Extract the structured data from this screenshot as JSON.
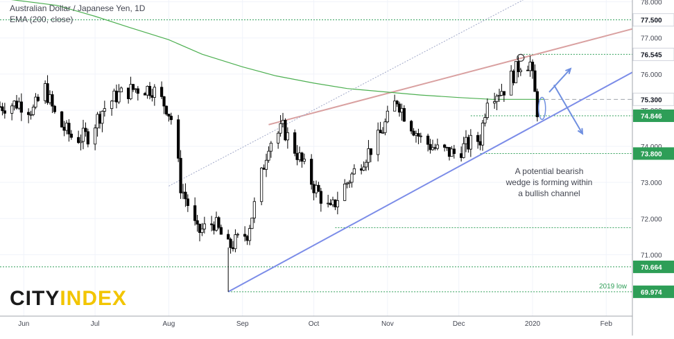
{
  "header": {
    "title": "Australian Dollar / Japanese Yen, 1D",
    "indicator": "EMA (200, close)"
  },
  "logo": {
    "part1": "CITY",
    "part2": "INDEX"
  },
  "annotation": {
    "lines": [
      "A potential bearish",
      "wedge is forming within",
      "a bullish channel"
    ]
  },
  "low_label": "2019 low",
  "colors": {
    "up_candle": "#ffffff",
    "down_candle": "#000000",
    "ema": "#4caf50",
    "upper_trendline": "#d9a0a0",
    "lower_trendline": "#7b8ce8",
    "level_line": "#2e9e57",
    "label_box": "#2e9e57",
    "arrows": "#6f8fe0",
    "logo_city": "#1a1a1a",
    "logo_index": "#f2c500"
  },
  "chart_data": {
    "type": "candlestick",
    "title": "Australian Dollar / Japanese Yen, 1D",
    "x_ticks": [
      "Jun",
      "Jul",
      "Aug",
      "Sep",
      "Oct",
      "Nov",
      "Dec",
      "2020",
      "Feb"
    ],
    "x_range": [
      "2019-05-22",
      "2020-02-12"
    ],
    "y_ticks": [
      "78.000",
      "77.000",
      "76.000",
      "75.000",
      "74.000",
      "73.000",
      "72.000",
      "71.000"
    ],
    "ylim": [
      69.3,
      78.05
    ],
    "price_levels": [
      {
        "value": 77.5,
        "label": "77.500",
        "style": "dotted",
        "highlight": true
      },
      {
        "value": 76.545,
        "label": "76.545",
        "style": "dotted",
        "highlight": true
      },
      {
        "value": 75.3,
        "label": "75.300",
        "style": "dashed",
        "highlight": true
      },
      {
        "value": 74.846,
        "label": "74.846",
        "style": "dotted",
        "highlight": true
      },
      {
        "value": 73.8,
        "label": "73.800",
        "style": "dotted",
        "highlight": true
      },
      {
        "value": 71.75,
        "label": "",
        "style": "dotted",
        "highlight": false
      },
      {
        "value": 70.664,
        "label": "70.664",
        "style": "dotted",
        "highlight": true
      },
      {
        "value": 69.974,
        "label": "69.974",
        "style": "dotted",
        "highlight": true
      }
    ],
    "series": [
      {
        "name": "EMA (200, close)",
        "type": "line",
        "points": [
          [
            "2019-05-22",
            78.1
          ],
          [
            "2019-06-15",
            77.9
          ],
          [
            "2019-07-01",
            77.6
          ],
          [
            "2019-07-15",
            77.3
          ],
          [
            "2019-08-01",
            76.95
          ],
          [
            "2019-08-15",
            76.55
          ],
          [
            "2019-09-01",
            76.2
          ],
          [
            "2019-09-15",
            75.95
          ],
          [
            "2019-10-01",
            75.75
          ],
          [
            "2019-10-15",
            75.6
          ],
          [
            "2019-11-01",
            75.5
          ],
          [
            "2019-11-15",
            75.42
          ],
          [
            "2019-12-01",
            75.35
          ],
          [
            "2019-12-15",
            75.3
          ],
          [
            "2020-01-06",
            75.3
          ]
        ]
      }
    ],
    "trendlines": [
      {
        "name": "upper",
        "from": [
          "2019-09-12",
          74.6
        ],
        "to": [
          "2020-02-12",
          77.25
        ]
      },
      {
        "name": "lower",
        "from": [
          "2019-08-26",
          69.974
        ],
        "to": [
          "2020-02-12",
          76.05
        ]
      },
      {
        "name": "dotted",
        "from": [
          "2019-08-01",
          72.9
        ],
        "to": [
          "2019-12-28",
          78.05
        ]
      }
    ],
    "ohlc_waypoints": [
      [
        "2019-05-22",
        75.1
      ],
      [
        "2019-05-30",
        75.2
      ],
      [
        "2019-06-05",
        75.0
      ],
      [
        "2019-06-10",
        75.6
      ],
      [
        "2019-06-15",
        74.7
      ],
      [
        "2019-06-22",
        74.2
      ],
      [
        "2019-06-28",
        74.3
      ],
      [
        "2019-07-04",
        75.0
      ],
      [
        "2019-07-10",
        75.4
      ],
      [
        "2019-07-18",
        75.6
      ],
      [
        "2019-07-25",
        75.6
      ],
      [
        "2019-07-31",
        75.1
      ],
      [
        "2019-08-03",
        74.6
      ],
      [
        "2019-08-06",
        72.9
      ],
      [
        "2019-08-09",
        72.4
      ],
      [
        "2019-08-13",
        71.6
      ],
      [
        "2019-08-20",
        71.9
      ],
      [
        "2019-08-26",
        71.2
      ],
      [
        "2019-09-03",
        71.6
      ],
      [
        "2019-09-07",
        72.6
      ],
      [
        "2019-09-12",
        74.1
      ],
      [
        "2019-09-18",
        74.5
      ],
      [
        "2019-09-24",
        73.8
      ],
      [
        "2019-10-01",
        72.9
      ],
      [
        "2019-10-08",
        72.2
      ],
      [
        "2019-10-12",
        72.7
      ],
      [
        "2019-10-20",
        73.5
      ],
      [
        "2019-10-28",
        74.2
      ],
      [
        "2019-11-05",
        75.3
      ],
      [
        "2019-11-08",
        74.9
      ],
      [
        "2019-11-15",
        74.2
      ],
      [
        "2019-11-22",
        73.9
      ],
      [
        "2019-11-29",
        73.8
      ],
      [
        "2019-12-06",
        74.1
      ],
      [
        "2019-12-10",
        74.2
      ],
      [
        "2019-12-13",
        75.4
      ],
      [
        "2019-12-20",
        75.6
      ],
      [
        "2019-12-27",
        76.3
      ],
      [
        "2019-12-31",
        76.3
      ],
      [
        "2020-01-03",
        75.0
      ],
      [
        "2020-01-06",
        75.1
      ]
    ]
  }
}
